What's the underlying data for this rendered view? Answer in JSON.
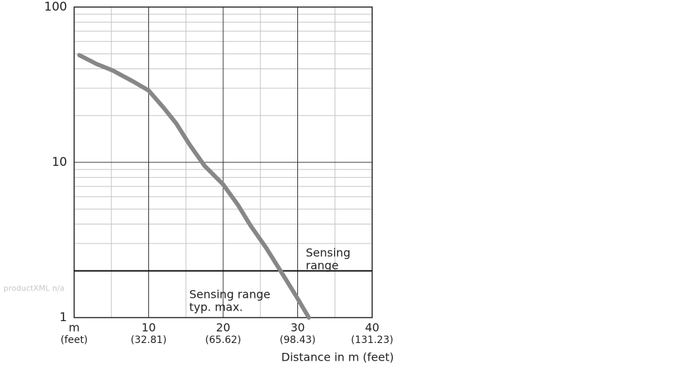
{
  "chart_data": {
    "type": "line",
    "watermark": "productXML n/a",
    "x_label": "Distance in m (feet)",
    "xlim": [
      0,
      40
    ],
    "xticks": [
      {
        "value": 0,
        "label": "m"
      },
      10,
      20,
      30,
      40
    ],
    "xtick_sublabels": [
      "(feet)",
      "(32.81)",
      "(65.62)",
      "(98.43)",
      "(131.23)"
    ],
    "minor_xticks": [
      5,
      15,
      25,
      35
    ],
    "ylim": [
      1,
      100
    ],
    "log_y": true,
    "yticks": [
      1,
      10,
      100
    ],
    "minor_yticks": [
      2,
      3,
      4,
      5,
      6,
      7,
      8,
      9,
      20,
      30,
      40,
      50,
      60,
      70,
      80,
      90
    ],
    "grid": true,
    "series": [
      {
        "color": "#878787",
        "x": [
          0.7,
          3,
          5.2,
          8,
          10,
          12,
          13.7,
          15.5,
          17.5,
          20,
          22,
          23.7,
          25.8,
          27.7,
          29.7,
          31.5
        ],
        "values": [
          49,
          43,
          39,
          33,
          29,
          22.5,
          17.8,
          13,
          9.5,
          7.2,
          5.3,
          3.9,
          2.8,
          2.0,
          1.4,
          1
        ]
      }
    ],
    "reference_line": {
      "value": 2,
      "color": "#111111"
    },
    "annotations": [
      {
        "lines": [
          "Sensing",
          "range"
        ]
      },
      {
        "lines": [
          "Sensing range",
          "typ. max."
        ]
      }
    ]
  }
}
